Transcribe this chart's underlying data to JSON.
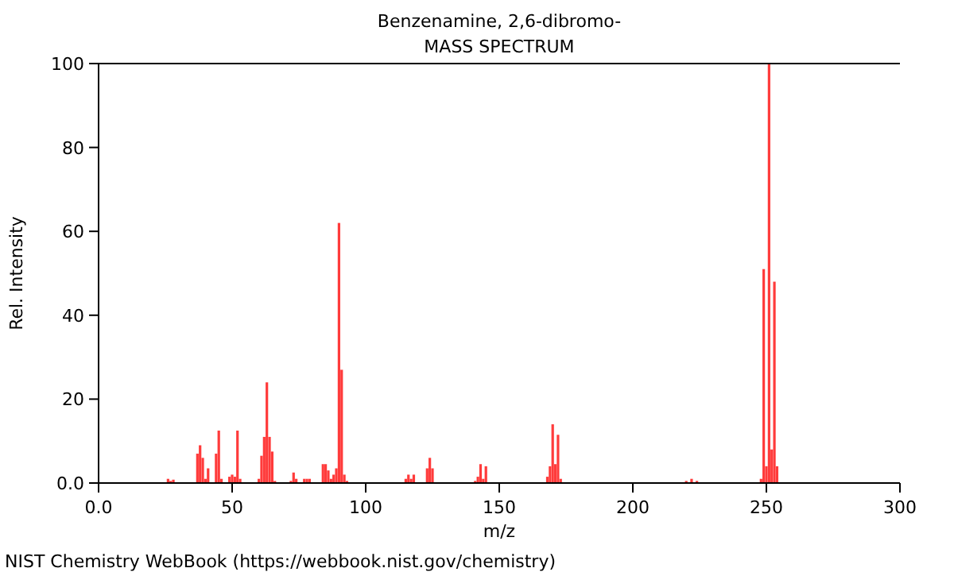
{
  "chart_data": {
    "type": "bar",
    "title": "Benzenamine, 2,6-dibromo-",
    "subtitle": "MASS SPECTRUM",
    "xlabel": "m/z",
    "ylabel": "Rel. Intensity",
    "x": [
      26,
      27,
      28,
      37,
      38,
      39,
      40,
      41,
      44,
      45,
      46,
      49,
      50,
      51,
      52,
      53,
      60,
      61,
      62,
      63,
      64,
      65,
      66,
      72,
      73,
      74,
      77,
      78,
      79,
      84,
      85,
      86,
      87,
      88,
      89,
      90,
      91,
      92,
      93,
      115,
      116,
      117,
      118,
      123,
      124,
      125,
      141,
      142,
      143,
      144,
      145,
      168,
      169,
      170,
      171,
      172,
      173,
      220,
      222,
      224,
      248,
      249,
      250,
      251,
      252,
      253,
      254
    ],
    "values": [
      1,
      0.5,
      0.8,
      7,
      9,
      6,
      1,
      3.5,
      7,
      12.5,
      1,
      1.5,
      2,
      1.5,
      12.5,
      1,
      1,
      6.5,
      11,
      24,
      11,
      7.5,
      0.5,
      0.5,
      2.5,
      1,
      1,
      1,
      1,
      4.5,
      4.5,
      3,
      1,
      2,
      3.5,
      62,
      27,
      2,
      0.5,
      1,
      2,
      1,
      2,
      3.5,
      6,
      3.5,
      0.5,
      1.5,
      4.5,
      1,
      4,
      1.5,
      4,
      14,
      4.5,
      11.5,
      1,
      0.5,
      1,
      0.5,
      1,
      51,
      4,
      100,
      8,
      48,
      4
    ],
    "color": "#ff3b3b",
    "xlim": [
      0,
      300
    ],
    "xticks": [
      {
        "value": 0,
        "label": "0.0"
      },
      50,
      100,
      150,
      200,
      250,
      300
    ],
    "ylim": [
      0,
      100
    ],
    "yticks": [
      {
        "value": 0,
        "label": "0.0"
      },
      20,
      40,
      60,
      80,
      100
    ],
    "annotations": [
      "NIST Chemistry WebBook (https://webbook.nist.gov/chemistry)"
    ]
  }
}
